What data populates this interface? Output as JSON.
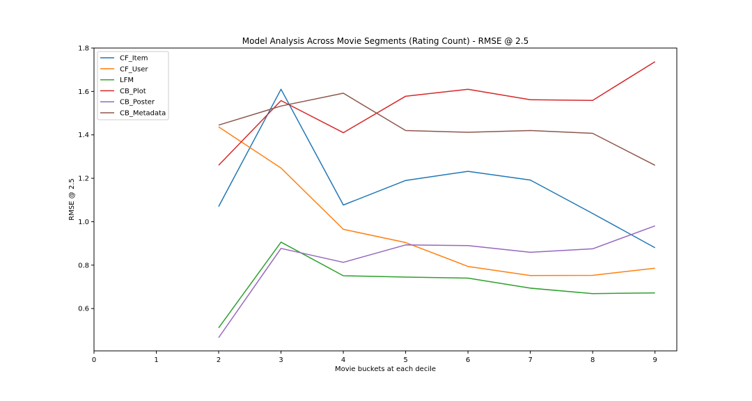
{
  "chart_data": {
    "type": "line",
    "title": "Model Analysis Across Movie Segments (Rating Count) - RMSE @ 2.5",
    "xlabel": "Movie buckets at each decile",
    "ylabel": "RMSE @ 2.5",
    "xlim": [
      0,
      9.35
    ],
    "ylim": [
      0.405,
      1.8
    ],
    "xticks": [
      0,
      1,
      2,
      3,
      4,
      5,
      6,
      7,
      8,
      9
    ],
    "yticks": [
      0.6,
      0.8,
      1.0,
      1.2,
      1.4,
      1.6,
      1.8
    ],
    "ytick_labels": [
      "0.6",
      "0.8",
      "1.0",
      "1.2",
      "1.4",
      "1.6",
      "1.8"
    ],
    "legend_position": "upper-left",
    "x": [
      2,
      3,
      4,
      5,
      6,
      7,
      8,
      9
    ],
    "series": [
      {
        "name": "CF_Item",
        "color": "#1f77b4",
        "values": [
          1.07,
          1.61,
          1.077,
          1.19,
          1.232,
          1.192,
          1.038,
          0.88
        ]
      },
      {
        "name": "CF_User",
        "color": "#ff7f0e",
        "values": [
          1.437,
          1.247,
          0.965,
          0.904,
          0.794,
          0.752,
          0.753,
          0.786
        ]
      },
      {
        "name": "LFM",
        "color": "#2ca02c",
        "values": [
          0.511,
          0.906,
          0.751,
          0.745,
          0.74,
          0.694,
          0.669,
          0.672
        ]
      },
      {
        "name": "CB_Plot",
        "color": "#d62728",
        "values": [
          1.26,
          1.558,
          1.41,
          1.578,
          1.61,
          1.562,
          1.559,
          1.737
        ]
      },
      {
        "name": "CB_Poster",
        "color": "#9467bd",
        "values": [
          0.466,
          0.877,
          0.813,
          0.893,
          0.89,
          0.859,
          0.875,
          0.981
        ]
      },
      {
        "name": "CB_Metadata",
        "color": "#8c564b",
        "values": [
          1.445,
          1.533,
          1.592,
          1.42,
          1.412,
          1.42,
          1.407,
          1.26
        ]
      }
    ]
  }
}
